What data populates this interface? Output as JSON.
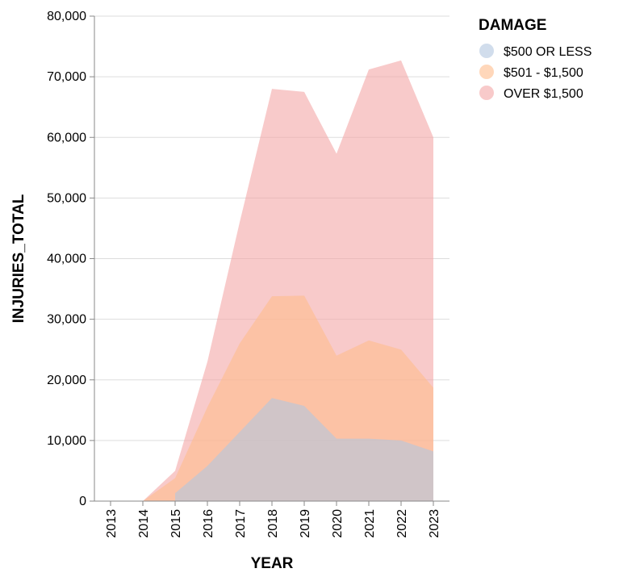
{
  "chart_data": {
    "type": "area",
    "stacked": false,
    "xlabel": "YEAR",
    "ylabel": "INJURIES_TOTAL",
    "x": [
      "2013",
      "2014",
      "2015",
      "2016",
      "2017",
      "2018",
      "2019",
      "2020",
      "2021",
      "2022",
      "2023"
    ],
    "ylim": [
      0,
      80000
    ],
    "yticks": [
      0,
      10000,
      20000,
      30000,
      40000,
      50000,
      60000,
      70000,
      80000
    ],
    "ytick_labels": [
      "0",
      "10,000",
      "20,000",
      "30,000",
      "40,000",
      "50,000",
      "60,000",
      "70,000",
      "80,000"
    ],
    "grid": true,
    "legend": {
      "title": "DAMAGE",
      "position": "top-right",
      "entries": [
        "$500 OR LESS",
        "$501 - $1,500",
        "OVER $1,500"
      ]
    },
    "series": [
      {
        "name": "OVER $1,500",
        "color": "#f4a6a6",
        "opacity": 0.6,
        "values": [
          null,
          0,
          5000,
          23000,
          46000,
          68000,
          67500,
          57300,
          71200,
          72700,
          60000
        ]
      },
      {
        "name": "$501 - $1,500",
        "color": "#ffbc8c",
        "opacity": 0.6,
        "values": [
          null,
          0,
          3800,
          15500,
          26000,
          33800,
          33900,
          24000,
          26500,
          25000,
          18700
        ]
      },
      {
        "name": "$500 OR LESS",
        "color": "#b3c6e0",
        "opacity": 0.6,
        "values": [
          null,
          null,
          1300,
          5800,
          11400,
          17000,
          15700,
          10300,
          10300,
          10000,
          8200
        ]
      }
    ]
  }
}
